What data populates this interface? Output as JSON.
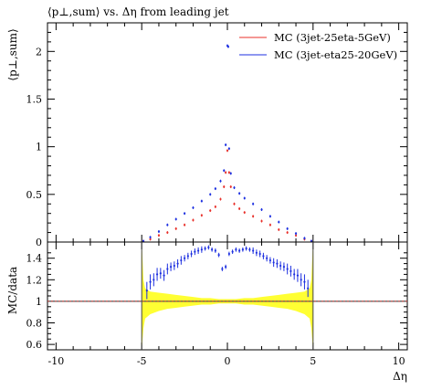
{
  "chart_data": [
    {
      "type": "scatter",
      "title": "⟨p⊥,sum⟩ vs. Δη from leading jet",
      "ylabel": "⟨p⊥,sum⟩",
      "xlim": [
        -10.5,
        10.5
      ],
      "ylim": [
        0,
        2.3
      ],
      "y_ticks": [
        "0",
        "0.5",
        "1",
        "1.5",
        "2"
      ],
      "y_tick_values": [
        0,
        0.5,
        1,
        1.5,
        2
      ],
      "legend_position": "top-right",
      "colors": {
        "red_series": "#e8302a",
        "blue_series": "#1c2fe0"
      },
      "series": [
        {
          "name": "MC (3jet-25eta-5GeV)",
          "color": "#e8302a",
          "x": [
            -4.9,
            -4.5,
            -4.0,
            -3.5,
            -3.0,
            -2.5,
            -2.0,
            -1.5,
            -1.0,
            -0.7,
            -0.4,
            -0.2,
            -0.1,
            0.0,
            0.1,
            0.2,
            0.4,
            0.7,
            1.0,
            1.5,
            2.0,
            2.5,
            3.0,
            3.5,
            4.0,
            4.5,
            4.9
          ],
          "y": [
            0.01,
            0.03,
            0.07,
            0.1,
            0.14,
            0.18,
            0.23,
            0.28,
            0.33,
            0.37,
            0.45,
            0.58,
            0.73,
            0.96,
            0.73,
            0.58,
            0.4,
            0.35,
            0.31,
            0.27,
            0.22,
            0.18,
            0.13,
            0.1,
            0.07,
            0.03,
            0.01
          ]
        },
        {
          "name": "MC (3jet-eta25-20GeV)",
          "color": "#1c2fe0",
          "x": [
            -4.9,
            -4.5,
            -4.0,
            -3.5,
            -3.0,
            -2.5,
            -2.0,
            -1.5,
            -1.0,
            -0.7,
            -0.4,
            -0.2,
            -0.1,
            0.0,
            0.05,
            0.1,
            0.2,
            0.4,
            0.7,
            1.0,
            1.5,
            2.0,
            2.5,
            3.0,
            3.5,
            4.0,
            4.5,
            4.9
          ],
          "y": [
            0.01,
            0.05,
            0.11,
            0.18,
            0.24,
            0.3,
            0.36,
            0.43,
            0.5,
            0.56,
            0.64,
            0.75,
            1.02,
            2.06,
            2.05,
            0.98,
            0.72,
            0.57,
            0.51,
            0.46,
            0.4,
            0.34,
            0.27,
            0.21,
            0.14,
            0.09,
            0.04,
            0.01
          ]
        }
      ]
    },
    {
      "type": "scatter",
      "ylabel": "MC/data",
      "xlabel": "Δη",
      "xlim": [
        -10.5,
        10.5
      ],
      "ylim": [
        0.55,
        1.55
      ],
      "x_ticks": [
        "-10",
        "-5",
        "0",
        "5",
        "10"
      ],
      "x_tick_values": [
        -10,
        -5,
        0,
        5,
        10
      ],
      "y_ticks": [
        "0.6",
        "0.8",
        "1",
        "1.2",
        "1.4"
      ],
      "y_tick_values": [
        0.6,
        0.8,
        1.0,
        1.2,
        1.4
      ],
      "band": {
        "color": "#ffff33",
        "x": [
          -5.0,
          -4.9,
          -4.8,
          -4.5,
          -4.0,
          -3.5,
          -3.0,
          -2.5,
          -2.0,
          -1.5,
          -1.0,
          -0.5,
          0.0,
          0.5,
          1.0,
          1.5,
          2.0,
          2.5,
          3.0,
          3.5,
          4.0,
          4.5,
          4.8,
          4.9,
          5.0
        ],
        "upper": [
          1.55,
          1.2,
          1.12,
          1.09,
          1.08,
          1.07,
          1.06,
          1.05,
          1.04,
          1.03,
          1.03,
          1.02,
          1.02,
          1.02,
          1.03,
          1.03,
          1.04,
          1.05,
          1.06,
          1.07,
          1.08,
          1.09,
          1.12,
          1.2,
          1.55
        ],
        "lower": [
          0.55,
          0.75,
          0.84,
          0.88,
          0.91,
          0.93,
          0.94,
          0.95,
          0.96,
          0.97,
          0.97,
          0.98,
          0.98,
          0.98,
          0.97,
          0.97,
          0.96,
          0.95,
          0.94,
          0.93,
          0.91,
          0.88,
          0.84,
          0.75,
          0.55
        ]
      },
      "series": [
        {
          "name": "MC (3jet-25eta-5GeV)",
          "color": "#e8302a",
          "x": [
            -10.5,
            10.5
          ],
          "y": [
            1.0,
            1.0
          ]
        },
        {
          "name": "MC (3jet-eta25-20GeV)",
          "color": "#1c2fe0",
          "x": [
            -4.7,
            -4.5,
            -4.3,
            -4.1,
            -3.9,
            -3.7,
            -3.5,
            -3.3,
            -3.1,
            -2.9,
            -2.7,
            -2.5,
            -2.3,
            -2.1,
            -1.9,
            -1.7,
            -1.5,
            -1.3,
            -1.1,
            -0.9,
            -0.7,
            -0.5,
            -0.3,
            -0.1,
            0.1,
            0.3,
            0.5,
            0.7,
            0.9,
            1.1,
            1.3,
            1.5,
            1.7,
            1.9,
            2.1,
            2.3,
            2.5,
            2.7,
            2.9,
            3.1,
            3.3,
            3.5,
            3.7,
            3.9,
            4.1,
            4.3,
            4.5,
            4.7
          ],
          "y": [
            1.1,
            1.18,
            1.2,
            1.25,
            1.26,
            1.24,
            1.3,
            1.32,
            1.33,
            1.35,
            1.38,
            1.4,
            1.42,
            1.44,
            1.46,
            1.47,
            1.48,
            1.49,
            1.5,
            1.48,
            1.47,
            1.43,
            1.3,
            1.32,
            1.44,
            1.46,
            1.48,
            1.47,
            1.48,
            1.49,
            1.48,
            1.47,
            1.45,
            1.44,
            1.42,
            1.4,
            1.38,
            1.36,
            1.35,
            1.33,
            1.32,
            1.3,
            1.28,
            1.25,
            1.24,
            1.2,
            1.18,
            1.12
          ],
          "err": [
            0.08,
            0.07,
            0.06,
            0.06,
            0.05,
            0.05,
            0.05,
            0.04,
            0.04,
            0.04,
            0.04,
            0.03,
            0.03,
            0.03,
            0.03,
            0.03,
            0.03,
            0.02,
            0.02,
            0.02,
            0.02,
            0.02,
            0.02,
            0.02,
            0.02,
            0.02,
            0.02,
            0.02,
            0.02,
            0.02,
            0.02,
            0.03,
            0.03,
            0.03,
            0.03,
            0.03,
            0.03,
            0.04,
            0.04,
            0.04,
            0.04,
            0.05,
            0.05,
            0.05,
            0.06,
            0.06,
            0.07,
            0.08
          ]
        }
      ]
    }
  ]
}
